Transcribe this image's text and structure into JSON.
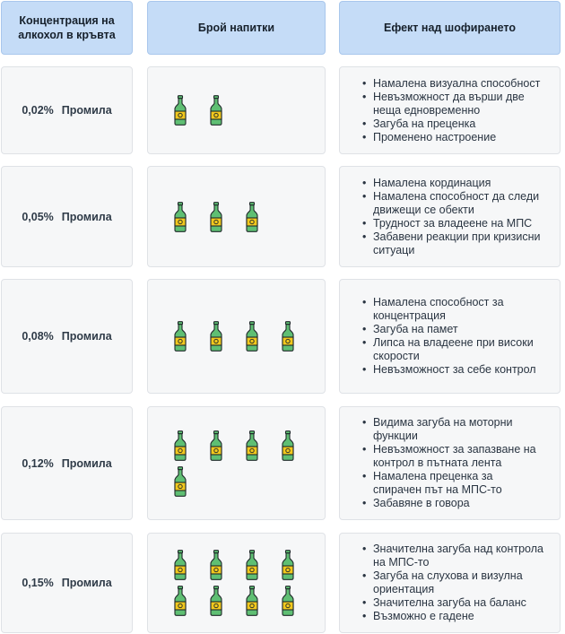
{
  "headers": {
    "concentration": "Концентрация на алкохол в кръвта",
    "drinks": "Брой напитки",
    "effect": "Ефект над шофирането"
  },
  "colors": {
    "header_bg": "#c5dcf7",
    "cell_bg": "#f6f7f8",
    "bottle_green": "#5fbf73",
    "bottle_label": "#f2c81d",
    "bottle_outline": "#1f2a2a"
  },
  "icon": "beer-bottle-icon",
  "rows": [
    {
      "value": "0,02%",
      "unit": "Промила",
      "drinks": 2,
      "effects": [
        "Намалена визуална способност",
        "Невъзможност да върши две неща едновременно",
        "Загуба на преценка",
        "Променено настроение"
      ]
    },
    {
      "value": "0,05%",
      "unit": "Промила",
      "drinks": 3,
      "effects": [
        "Намалена кординация",
        "Намалена способност да следи  движещи се обекти",
        "Трудност за владеене на МПС",
        "Забавени реакции при кризисни ситуаци"
      ]
    },
    {
      "value": "0,08%",
      "unit": "Промила",
      "drinks": 4,
      "effects": [
        "Намалена способност за концентрация",
        "Загуба на памет",
        "Липса на владеене при високи скорости",
        "Невъзможност за себе контрол"
      ]
    },
    {
      "value": "0,12%",
      "unit": "Промила",
      "drinks": 5,
      "effects": [
        "Видима загуба на моторни функции",
        "Невъзможност за запазване на контрол в пътната лента",
        "Намалена преценка за спирачен път на МПС-то",
        "Забавяне в говора"
      ]
    },
    {
      "value": "0,15%",
      "unit": "Промила",
      "drinks": 8,
      "effects": [
        "Значителна загуба над контрола на МПС-то",
        "Загуба на слухова и визулна ориентация",
        "Значителна загуба на баланс",
        "Възможно е гадене"
      ]
    }
  ]
}
